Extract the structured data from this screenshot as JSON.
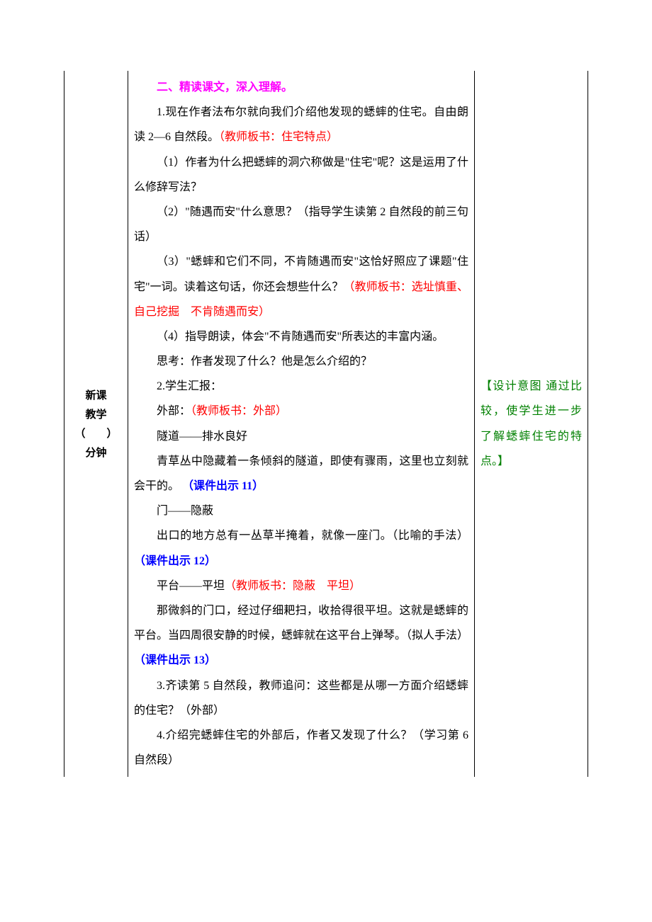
{
  "col1": {
    "line1": "新课",
    "line2": "教学",
    "line3": "（　　）",
    "line4": "分钟"
  },
  "body": {
    "h1": "二、精读课文，深入理解。",
    "p1a": "1.现在作者法布尔就向我们介绍他发现的蟋蟀的住宅。自由朗读 2—6 自然段。",
    "p1b": "（教师板书：住宅特点）",
    "q1": "（1）作者为什么把蟋蟀的洞穴称做是\"住宅\"呢？这是运用了什么修辞写法？",
    "q2": "（2）\"随遇而安\"什么意思？（指导学生读第 2 自然段的前三句话）",
    "q3a": "（3）\"蟋蟀和它们不同，不肯随遇而安\"这恰好照应了课题\"住宅\"一词。读着这句话，你还会想些什么？",
    "q3b": "（教师板书：选址慎重、自己挖掘　不肯随遇而安）",
    "q4": "（4）指导朗读，体会\"不肯随遇而安\"所表达的丰富内涵。",
    "think": "思考：作者发现了什么？他是怎么介绍的？",
    "p2": "2.学生汇报：",
    "outer_a": "外部：",
    "outer_b": "（教师板书：外部）",
    "tunnel": "隧道——排水良好",
    "tunnel_desc_a": "青草丛中隐藏着一条倾斜的隧道，即使有骤雨，这里也立刻就会干的。",
    "slide11": "（课件出示 11）",
    "door": "门——隐蔽",
    "door_desc_a": "出口的地方总有一丛草半掩着，就像一座门。（比喻的手法）",
    "slide12": "（课件出示 12）",
    "platform_a": "平台——平坦",
    "platform_b": "（教师板书：隐蔽　平坦）",
    "platform_desc_a": "那微斜的门口，经过仔细耙扫，收拾得很平坦。这就是蟋蟀的平台。当四周很安静的时候，蟋蟀就在这平台上弹琴。（拟人手法）",
    "slide13": "（课件出示 13）",
    "p3": "3.齐读第 5 自然段，教师追问：这些都是从哪一方面介绍蟋蟀的住宅？（外部）",
    "p4": "4.介绍完蟋蟀住宅的外部后，作者又发现了什么？（学习第 6 自然段）"
  },
  "col3": {
    "note": "【设计意图 通过比较，使学生进一步了解蟋蟀住宅的特点。】"
  },
  "colors": {
    "magenta": "#ff00ff",
    "red": "#ff0000",
    "blue": "#0000ff",
    "green": "#008000",
    "black": "#000000",
    "background": "#ffffff"
  },
  "layout": {
    "col1_width": 90,
    "col3_width": 160,
    "font_size": 16,
    "line_height": 2.2
  }
}
